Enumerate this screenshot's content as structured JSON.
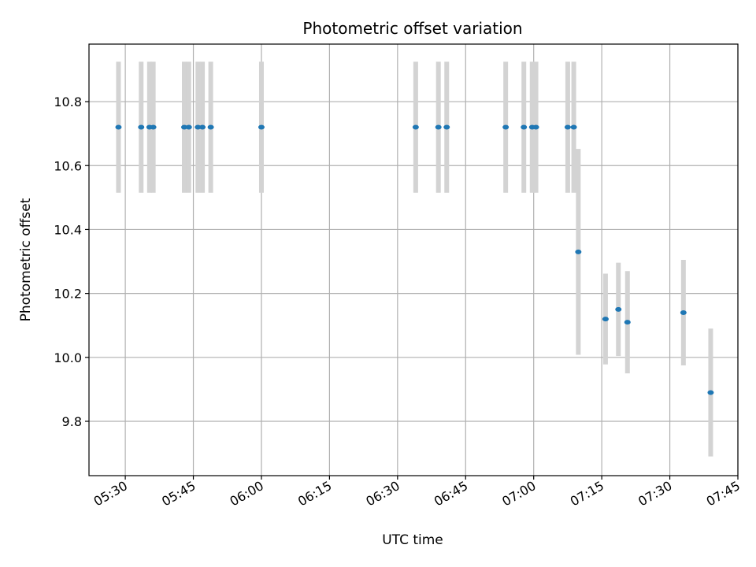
{
  "chart_data": {
    "type": "scatter",
    "title": "Photometric offset variation",
    "xlabel": "UTC time",
    "ylabel": "Photometric offset",
    "x_unit": "UTC time (HH:MM)",
    "xlim": [
      "05:22",
      "07:45"
    ],
    "ylim": [
      9.63,
      10.98
    ],
    "x_ticks": [
      "05:30",
      "05:45",
      "06:00",
      "06:15",
      "06:30",
      "06:45",
      "07:00",
      "07:15",
      "07:30",
      "07:45"
    ],
    "y_ticks": [
      "9.8",
      "10.0",
      "10.2",
      "10.4",
      "10.6",
      "10.8"
    ],
    "grid": true,
    "colors": {
      "point": "#1f77b4",
      "errorbar": "#d3d3d3",
      "grid": "#b0b0b0",
      "axis": "#000000"
    },
    "points": [
      {
        "x": "05:28:30",
        "y": 10.72,
        "yerr": 0.205
      },
      {
        "x": "05:33:30",
        "y": 10.72,
        "yerr": 0.205
      },
      {
        "x": "05:35:20",
        "y": 10.72,
        "yerr": 0.205
      },
      {
        "x": "05:36:10",
        "y": 10.72,
        "yerr": 0.205
      },
      {
        "x": "05:43:00",
        "y": 10.72,
        "yerr": 0.205
      },
      {
        "x": "05:44:00",
        "y": 10.72,
        "yerr": 0.205
      },
      {
        "x": "05:46:00",
        "y": 10.72,
        "yerr": 0.205
      },
      {
        "x": "05:47:00",
        "y": 10.72,
        "yerr": 0.205
      },
      {
        "x": "05:48:50",
        "y": 10.72,
        "yerr": 0.205
      },
      {
        "x": "06:00:00",
        "y": 10.72,
        "yerr": 0.205
      },
      {
        "x": "06:34:00",
        "y": 10.72,
        "yerr": 0.205
      },
      {
        "x": "06:39:00",
        "y": 10.72,
        "yerr": 0.205
      },
      {
        "x": "06:40:50",
        "y": 10.72,
        "yerr": 0.205
      },
      {
        "x": "06:53:50",
        "y": 10.72,
        "yerr": 0.205
      },
      {
        "x": "06:57:50",
        "y": 10.72,
        "yerr": 0.205
      },
      {
        "x": "06:59:40",
        "y": 10.72,
        "yerr": 0.205
      },
      {
        "x": "07:00:30",
        "y": 10.72,
        "yerr": 0.205
      },
      {
        "x": "07:07:30",
        "y": 10.72,
        "yerr": 0.205
      },
      {
        "x": "07:08:50",
        "y": 10.72,
        "yerr": 0.205
      },
      {
        "x": "07:09:50",
        "y": 10.33,
        "yerr": 0.322
      },
      {
        "x": "07:15:50",
        "y": 10.12,
        "yerr": 0.142
      },
      {
        "x": "07:18:40",
        "y": 10.15,
        "yerr": 0.146
      },
      {
        "x": "07:20:40",
        "y": 10.11,
        "yerr": 0.16
      },
      {
        "x": "07:33:00",
        "y": 10.14,
        "yerr": 0.165
      },
      {
        "x": "07:39:00",
        "y": 9.89,
        "yerr": 0.2
      }
    ]
  }
}
